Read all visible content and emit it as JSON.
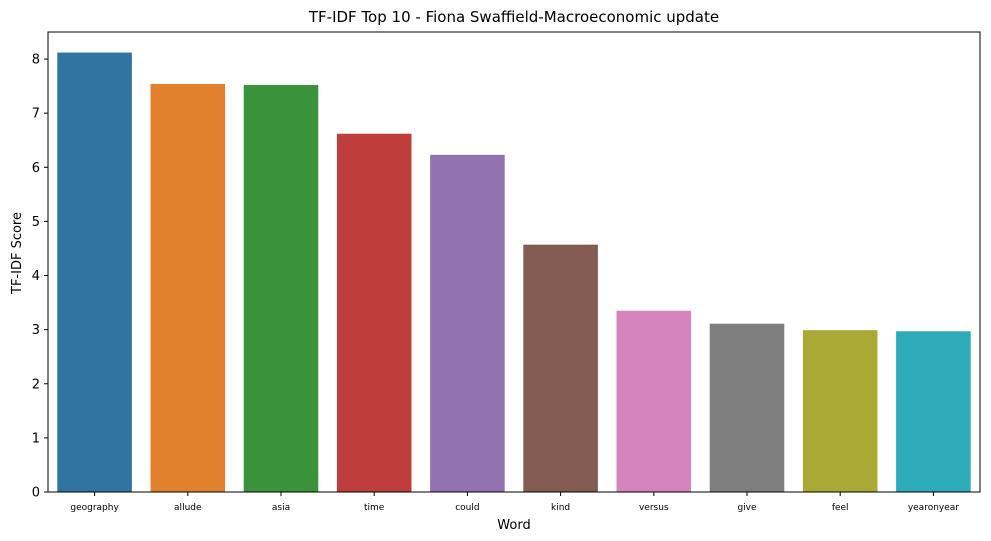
{
  "chart_data": {
    "type": "bar",
    "title": "TF-IDF Top 10 - Fiona Swaffield-Macroeconomic update",
    "xlabel": "Word",
    "ylabel": "TF-IDF Score",
    "categories": [
      "geography",
      "allude",
      "asia",
      "time",
      "could",
      "kind",
      "versus",
      "give",
      "feel",
      "yearonyear"
    ],
    "values": [
      8.12,
      7.54,
      7.52,
      6.62,
      6.23,
      4.57,
      3.35,
      3.11,
      2.99,
      2.97
    ],
    "colors": [
      "#3274a1",
      "#e1812c",
      "#3a923a",
      "#c03d3e",
      "#9372b2",
      "#845b53",
      "#d684bd",
      "#7f7f7f",
      "#a9aa35",
      "#2eabb8"
    ],
    "ylim": [
      0,
      8.5
    ],
    "yticks": [
      0,
      1,
      2,
      3,
      4,
      5,
      6,
      7,
      8
    ],
    "grid": false,
    "legend": "none"
  }
}
